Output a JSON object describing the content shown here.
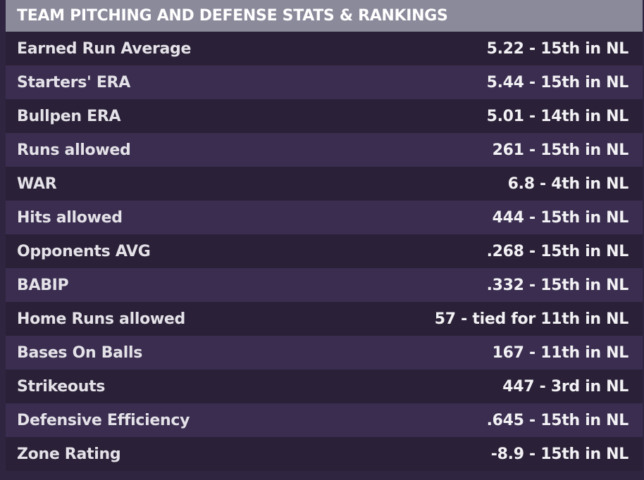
{
  "title": "TEAM PITCHING AND DEFENSE STATS & RANKINGS",
  "rows": [
    {
      "label": "Earned Run Average",
      "value": "5.22 - 15th in NL"
    },
    {
      "label": "Starters' ERA",
      "value": "5.44 - 15th in NL"
    },
    {
      "label": "Bullpen ERA",
      "value": "5.01 - 14th in NL"
    },
    {
      "label": "Runs allowed",
      "value": "261 - 15th in NL"
    },
    {
      "label": "WAR",
      "value": "6.8 - 4th in NL"
    },
    {
      "label": "Hits allowed",
      "value": "444 - 15th in NL"
    },
    {
      "label": "Opponents AVG",
      "value": ".268 - 15th in NL"
    },
    {
      "label": "BABIP",
      "value": ".332 - 15th in NL"
    },
    {
      "label": "Home Runs allowed",
      "value": "57 - tied for 11th in NL"
    },
    {
      "label": "Bases On Balls",
      "value": "167 - 11th in NL"
    },
    {
      "label": "Strikeouts",
      "value": "447 - 3rd in NL"
    },
    {
      "label": "Defensive Efficiency",
      "value": ".645 - 15th in NL"
    },
    {
      "label": "Zone Rating",
      "value": "-8.9 - 15th in NL"
    }
  ]
}
